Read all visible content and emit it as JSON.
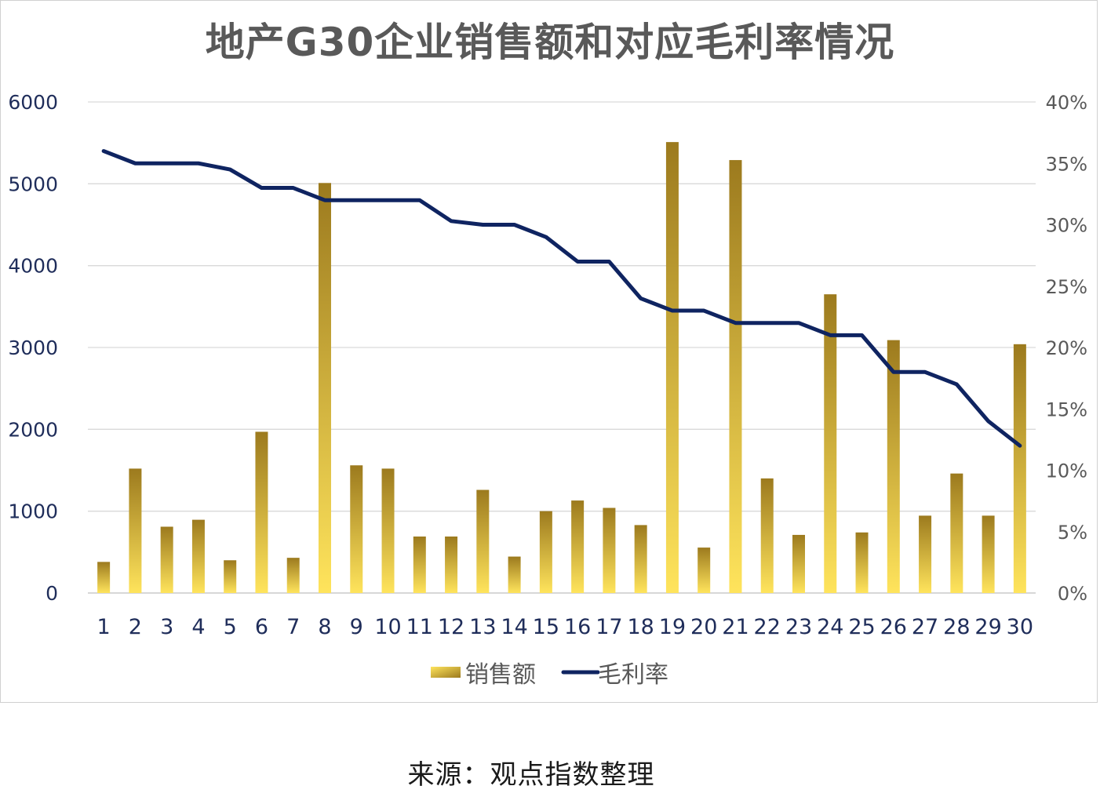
{
  "chart_data": {
    "type": "bar+line",
    "title": "地产G30企业销售额和对应毛利率情况",
    "categories": [
      "1",
      "2",
      "3",
      "4",
      "5",
      "6",
      "7",
      "8",
      "9",
      "10",
      "11",
      "12",
      "13",
      "14",
      "15",
      "16",
      "17",
      "18",
      "19",
      "20",
      "21",
      "22",
      "23",
      "24",
      "25",
      "26",
      "27",
      "28",
      "29",
      "30"
    ],
    "series": [
      {
        "name": "销售额",
        "type": "bar",
        "axis": "left",
        "color": "#C9A227",
        "values": [
          380,
          1520,
          810,
          895,
          400,
          1970,
          430,
          5010,
          1560,
          1520,
          690,
          690,
          1260,
          445,
          1000,
          1130,
          1040,
          830,
          5510,
          555,
          5290,
          1400,
          710,
          3650,
          740,
          3090,
          945,
          1460,
          945,
          3040
        ]
      },
      {
        "name": "毛利率",
        "type": "line",
        "axis": "right",
        "color": "#0F2461",
        "values": [
          0.36,
          0.35,
          0.35,
          0.35,
          0.345,
          0.33,
          0.33,
          0.32,
          0.32,
          0.32,
          0.32,
          0.303,
          0.3,
          0.3,
          0.29,
          0.27,
          0.27,
          0.24,
          0.23,
          0.23,
          0.22,
          0.22,
          0.22,
          0.21,
          0.21,
          0.18,
          0.18,
          0.17,
          0.14,
          0.12
        ]
      }
    ],
    "yleft": {
      "ylim": [
        0,
        6000
      ],
      "ticks": [
        "0",
        "1000",
        "2000",
        "3000",
        "4000",
        "5000",
        "6000"
      ]
    },
    "yright": {
      "ylim": [
        0,
        0.4
      ],
      "ticks": [
        "0%",
        "5%",
        "10%",
        "15%",
        "20%",
        "25%",
        "30%",
        "35%",
        "40%"
      ]
    },
    "grid": true,
    "legend": "bottom-center"
  },
  "source": "来源：观点指数整理"
}
